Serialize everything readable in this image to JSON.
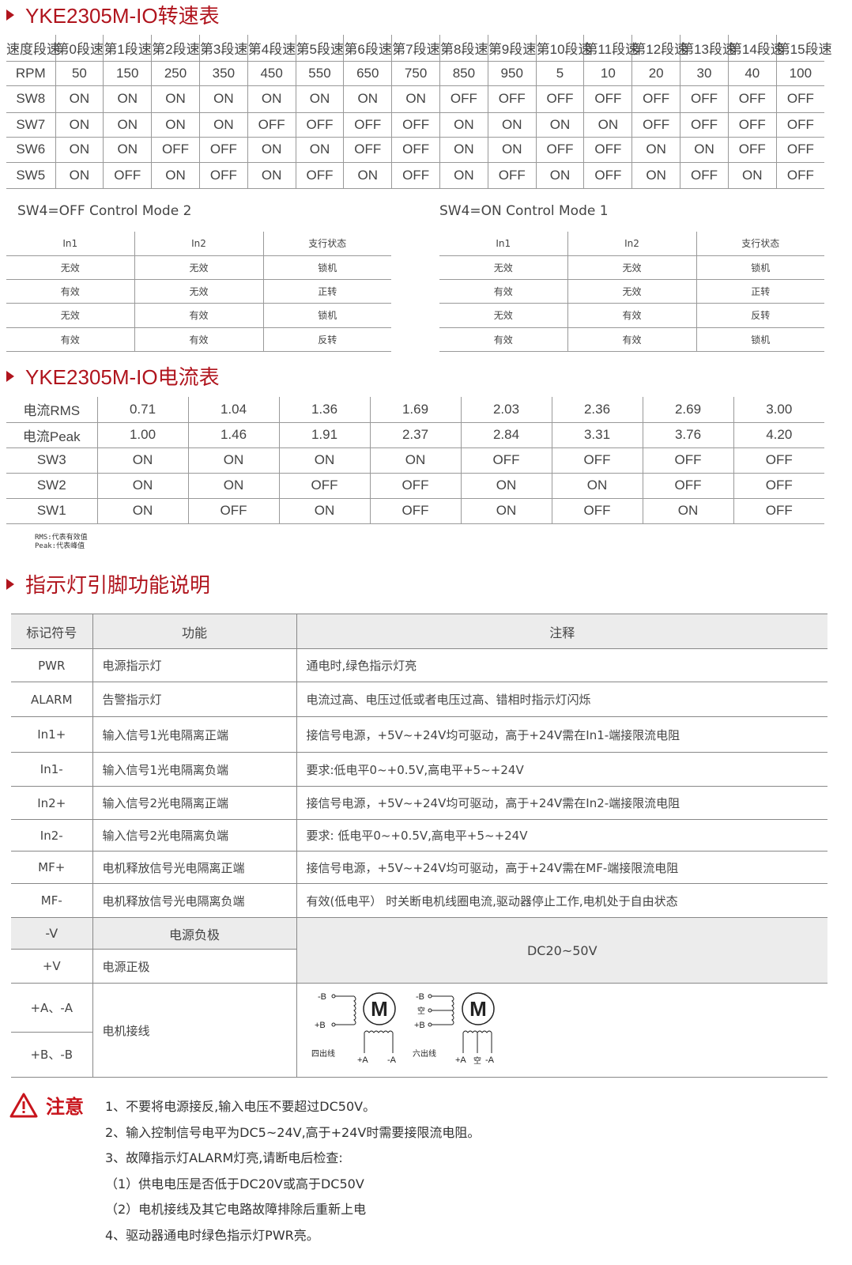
{
  "speed_section": {
    "title": "YKE2305M-IO转速表",
    "rows": [
      [
        "速度段速",
        "第0段速",
        "第1段速",
        "第2段速",
        "第3段速",
        "第4段速",
        "第5段速",
        "第6段速",
        "第7段速",
        "第8段速",
        "第9段速",
        "第10段速",
        "第11段速",
        "第12段速",
        "第13段速",
        "第14段速",
        "第15段速"
      ],
      [
        "RPM",
        "50",
        "150",
        "250",
        "350",
        "450",
        "550",
        "650",
        "750",
        "850",
        "950",
        "5",
        "10",
        "20",
        "30",
        "40",
        "100"
      ],
      [
        "SW8",
        "ON",
        "ON",
        "ON",
        "ON",
        "ON",
        "ON",
        "ON",
        "ON",
        "OFF",
        "OFF",
        "OFF",
        "OFF",
        "OFF",
        "OFF",
        "OFF",
        "OFF"
      ],
      [
        "SW7",
        "ON",
        "ON",
        "ON",
        "ON",
        "OFF",
        "OFF",
        "OFF",
        "OFF",
        "ON",
        "ON",
        "ON",
        "ON",
        "OFF",
        "OFF",
        "OFF",
        "OFF"
      ],
      [
        "SW6",
        "ON",
        "ON",
        "OFF",
        "OFF",
        "ON",
        "ON",
        "OFF",
        "OFF",
        "ON",
        "ON",
        "OFF",
        "OFF",
        "ON",
        "ON",
        "OFF",
        "OFF"
      ],
      [
        "SW5",
        "ON",
        "OFF",
        "ON",
        "OFF",
        "ON",
        "OFF",
        "ON",
        "OFF",
        "ON",
        "OFF",
        "ON",
        "OFF",
        "ON",
        "OFF",
        "ON",
        "OFF"
      ]
    ]
  },
  "mode_left": {
    "label": "SW4=OFF  Control  Mode 2",
    "rows": [
      [
        "In1",
        "In2",
        "支行状态"
      ],
      [
        "无效",
        "无效",
        "锁机"
      ],
      [
        "有效",
        "无效",
        "正转"
      ],
      [
        "无效",
        "有效",
        "锁机"
      ],
      [
        "有效",
        "有效",
        "反转"
      ]
    ]
  },
  "mode_right": {
    "label": "SW4=ON  Control  Mode 1",
    "rows": [
      [
        "In1",
        "In2",
        "支行状态"
      ],
      [
        "无效",
        "无效",
        "锁机"
      ],
      [
        "有效",
        "无效",
        "正转"
      ],
      [
        "无效",
        "有效",
        "反转"
      ],
      [
        "有效",
        "有效",
        "锁机"
      ]
    ]
  },
  "current_section": {
    "title": "YKE2305M-IO电流表",
    "rows": [
      [
        "电流RMS",
        "0.71",
        "1.04",
        "1.36",
        "1.69",
        "2.03",
        "2.36",
        "2.69",
        "3.00"
      ],
      [
        "电流Peak",
        "1.00",
        "1.46",
        "1.91",
        "2.37",
        "2.84",
        "3.31",
        "3.76",
        "4.20"
      ],
      [
        "SW3",
        "ON",
        "ON",
        "ON",
        "ON",
        "OFF",
        "OFF",
        "OFF",
        "OFF"
      ],
      [
        "SW2",
        "ON",
        "ON",
        "OFF",
        "OFF",
        "ON",
        "ON",
        "OFF",
        "OFF"
      ],
      [
        "SW1",
        "ON",
        "OFF",
        "ON",
        "OFF",
        "ON",
        "OFF",
        "ON",
        "OFF"
      ]
    ],
    "note_rms": "RMS:代表有效值",
    "note_peak": "Peak:代表峰值"
  },
  "pin_section": {
    "title": "指示灯引脚功能说明",
    "header": [
      "标记符号",
      "功能",
      "注释"
    ],
    "rows": [
      [
        "PWR",
        "电源指示灯",
        "通电时,绿色指示灯亮"
      ],
      [
        "ALARM",
        "告警指示灯",
        "电流过高、电压过低或者电压过高、错相时指示灯闪烁"
      ],
      [
        "In1+",
        "输入信号1光电隔离正端",
        "接信号电源，+5V~+24V均可驱动，高于+24V需在In1-端接限流电阻"
      ],
      [
        "In1-",
        "输入信号1光电隔离负端",
        "要求:低电平0~+0.5V,高电平+5~+24V"
      ],
      [
        "In2+",
        "输入信号2光电隔离正端",
        "接信号电源，+5V~+24V均可驱动，高于+24V需在In2-端接限流电阻"
      ],
      [
        "In2-",
        "输入信号2光电隔离负端",
        "要求: 低电平0~+0.5V,高电平+5~+24V"
      ],
      [
        "MF+",
        "电机释放信号光电隔离正端",
        "接信号电源，+5V~+24V均可驱动，高于+24V需在MF-端接限流电阻"
      ],
      [
        "MF-",
        "电机释放信号光电隔离负端",
        "有效(低电平）  时关断电机线圈电流,驱动器停止工作,电机处于自由状态"
      ]
    ],
    "power": {
      "neg": "-V",
      "neg_fn": "电源负极",
      "pos": "+V",
      "pos_fn": "电源正极",
      "note": "DC20~50V"
    },
    "motor": {
      "a": "+A、-A",
      "b": "+B、-B",
      "fn": "电机接线",
      "four": {
        "nb": "-B",
        "pb": "+B",
        "m": "M",
        "label": "四出线",
        "pa": "+A",
        "na": "-A"
      },
      "six": {
        "nb": "-B",
        "mid": "空",
        "pb": "+B",
        "m": "M",
        "label": "六出线",
        "pa": "+A",
        "amid": "空",
        "na": "-A"
      }
    }
  },
  "notice": {
    "title": "注意",
    "items": [
      "1、不要将电源接反,输入电压不要超过DC50V。",
      "2、输入控制信号电平为DC5~24V,高于+24V时需要接限流电阻。",
      "3、故障指示灯ALARM灯亮,请断电后检查:",
      "（1）供电电压是否低于DC20V或高于DC50V",
      "（2）电机接线及其它电路故障排除后重新上电",
      "4、驱动器通电时绿色指示灯PWR亮。"
    ]
  },
  "colors": {
    "accent": "#b0141d",
    "header_bg": "#ececec"
  }
}
